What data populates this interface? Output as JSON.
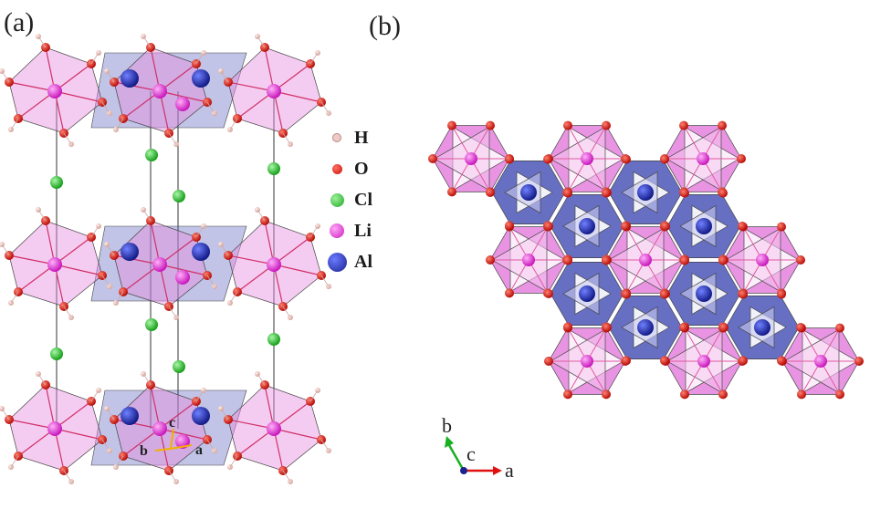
{
  "panels": [
    {
      "label": "(a)"
    },
    {
      "label": "(b)"
    }
  ],
  "legend": [
    {
      "symbol": "H",
      "color": "#efc9c3",
      "size": 8
    },
    {
      "symbol": "O",
      "color": "#e0170f",
      "size": 11
    },
    {
      "symbol": "Cl",
      "color": "#27c42b",
      "size": 15
    },
    {
      "symbol": "Li",
      "color": "#e235d7",
      "size": 16
    },
    {
      "symbol": "Al",
      "color": "#2330c4",
      "size": 21
    }
  ],
  "axes_a": {
    "b": "b",
    "c": "c",
    "a": "a"
  },
  "axes_b": {
    "b": "b",
    "c": "c",
    "a": "a"
  },
  "colors": {
    "octahedron_pink": "#e88ee0",
    "octahedron_blue": "#4c56b8",
    "oxygen": "#e0170f",
    "lithium": "#e235d7",
    "aluminum": "#2330c4",
    "chlorine": "#27c42b",
    "hydrogen": "#efc9c3"
  }
}
